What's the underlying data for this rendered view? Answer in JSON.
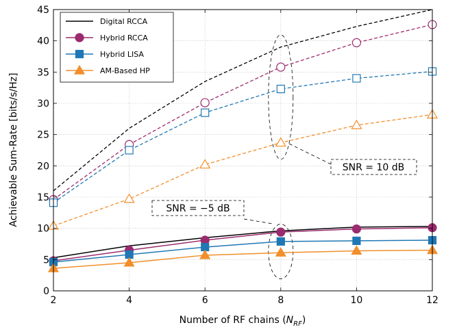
{
  "chart_data": {
    "type": "line",
    "xlabel": "Number of RF chains (N_RF)",
    "xlabel_main": "Number of RF chains (",
    "xlabel_sym": "N",
    "xlabel_sub": "RF",
    "xlabel_close": ")",
    "ylabel": "Achievable Sum-Rate [bits/s/Hz]",
    "x": [
      2,
      4,
      6,
      8,
      10,
      12
    ],
    "xlim": [
      2,
      12
    ],
    "ylim": [
      0,
      45
    ],
    "xticks": [
      "2",
      "4",
      "6",
      "8",
      "10",
      "12"
    ],
    "yticks": [
      "0",
      "5",
      "10",
      "15",
      "20",
      "25",
      "30",
      "35",
      "40",
      "45"
    ],
    "grid": true,
    "legend_position": "top-left",
    "series": [
      {
        "name": "Digital RCCA",
        "color": "#000000",
        "marker": "none",
        "snr10": [
          16,
          26,
          33.5,
          39,
          42.3,
          45
        ],
        "snr_m5": [
          5.3,
          7.2,
          8.5,
          9.6,
          10.2,
          10.3
        ]
      },
      {
        "name": "Hybrid RCCA",
        "color": "#9b2b6e",
        "marker": "circle",
        "snr10": [
          14.6,
          23.4,
          30.1,
          35.8,
          39.7,
          42.6
        ],
        "snr_m5": [
          4.8,
          6.5,
          8.1,
          9.4,
          9.9,
          10.1
        ]
      },
      {
        "name": "Hybrid LISA",
        "color": "#1f77b4",
        "marker": "square",
        "snr10": [
          14.1,
          22.5,
          28.5,
          32.3,
          34,
          35.1
        ],
        "snr_m5": [
          4.6,
          5.8,
          7,
          7.9,
          8,
          8.1
        ]
      },
      {
        "name": "AM-Based HP",
        "color": "#f28e2b",
        "marker": "triangle",
        "snr10": [
          10.4,
          14.7,
          20.2,
          23.7,
          26.5,
          28.2
        ],
        "snr_m5": [
          3.6,
          4.5,
          5.7,
          6.1,
          6.4,
          6.5
        ]
      }
    ],
    "annotations": [
      {
        "label": "SNR = 10 dB",
        "text_left": "SNR ",
        "text_mid": "= 10",
        "text_right": " dB"
      },
      {
        "label": "SNR = −5 dB",
        "text_left": "SNR ",
        "text_mid": "= −5",
        "text_right": " dB"
      }
    ]
  }
}
